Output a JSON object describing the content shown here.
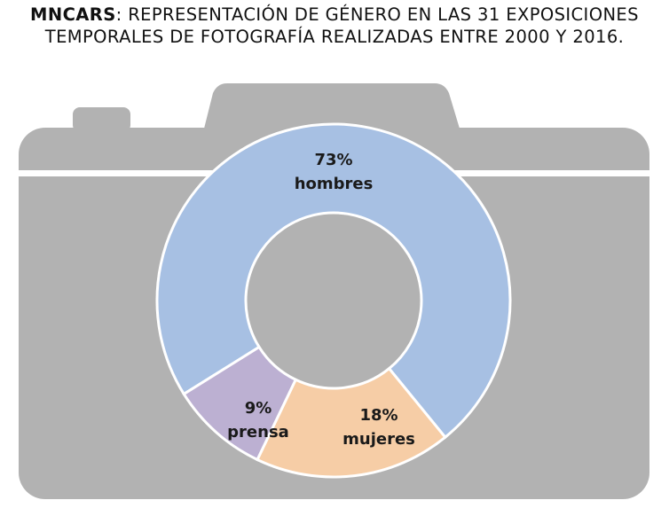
{
  "title": {
    "brand": "MNCARS",
    "separator": ":",
    "line1_rest": " REPRESENTACIÓN DE GÉNERO EN LAS 31 EXPOSICIONES",
    "line2": "TEMPORALES DE FOTOGRAFÍA REALIZADAS ENTRE 2000 Y 2016."
  },
  "colors": {
    "camera_body": "#b2b2b2",
    "camera_stripe": "#ffffff",
    "hombres": "#a7c0e3",
    "mujeres": "#f6cda6",
    "prensa": "#bcb0d2",
    "slice_border": "#ffffff"
  },
  "icon": "camera-icon",
  "chart_data": {
    "type": "pie",
    "subtype": "donut",
    "title": "MNCARS: REPRESENTACIÓN DE GÉNERO EN LAS 31 EXPOSICIONES TEMPORALES DE FOTOGRAFÍA REALIZADAS ENTRE 2000 Y 2016.",
    "categories": [
      "hombres",
      "mujeres",
      "prensa"
    ],
    "values": [
      73,
      18,
      9
    ],
    "labels": [
      {
        "pct": "73%",
        "name": "hombres"
      },
      {
        "pct": "18%",
        "name": "mujeres"
      },
      {
        "pct": "9%",
        "name": "prensa"
      }
    ],
    "legend": "none"
  }
}
